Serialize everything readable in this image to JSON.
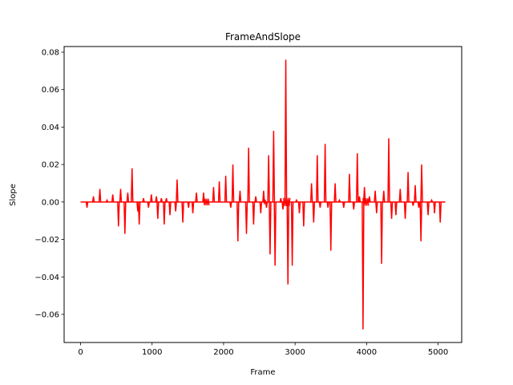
{
  "chart_data": {
    "type": "line",
    "title": "FrameAndSlope",
    "xlabel": "Frame",
    "ylabel": "Slope",
    "xlim": [
      -230,
      5330
    ],
    "ylim": [
      -0.075,
      0.083
    ],
    "xticks": [
      0,
      1000,
      2000,
      3000,
      4000,
      5000
    ],
    "xtick_labels": [
      "0",
      "1000",
      "2000",
      "3000",
      "4000",
      "5000"
    ],
    "yticks": [
      -0.06,
      -0.04,
      -0.02,
      0.0,
      0.02,
      0.04,
      0.06,
      0.08
    ],
    "ytick_labels": [
      "−0.06",
      "−0.04",
      "−0.02",
      "0.00",
      "0.02",
      "0.04",
      "0.06",
      "0.08"
    ],
    "grid": false,
    "legend": "none",
    "colors": {
      "line": "#ff0000",
      "axis": "#000000",
      "background": "#ffffff"
    },
    "series": [
      {
        "baseline": 0.0,
        "spikes": [
          {
            "x": 90,
            "y": -0.003
          },
          {
            "x": 180,
            "y": 0.003
          },
          {
            "x": 270,
            "y": 0.007
          },
          {
            "x": 370,
            "y": 0.001
          },
          {
            "x": 450,
            "y": 0.004
          },
          {
            "x": 530,
            "y": -0.013
          },
          {
            "x": 560,
            "y": 0.007
          },
          {
            "x": 620,
            "y": -0.017
          },
          {
            "x": 660,
            "y": 0.005
          },
          {
            "x": 720,
            "y": 0.018
          },
          {
            "x": 800,
            "y": -0.005
          },
          {
            "x": 820,
            "y": -0.012
          },
          {
            "x": 880,
            "y": 0.002
          },
          {
            "x": 950,
            "y": -0.003
          },
          {
            "x": 990,
            "y": 0.004
          },
          {
            "x": 1060,
            "y": 0.003
          },
          {
            "x": 1080,
            "y": -0.009
          },
          {
            "x": 1130,
            "y": 0.002
          },
          {
            "x": 1170,
            "y": -0.012
          },
          {
            "x": 1200,
            "y": 0.002
          },
          {
            "x": 1250,
            "y": -0.007
          },
          {
            "x": 1330,
            "y": -0.005
          },
          {
            "x": 1350,
            "y": 0.012
          },
          {
            "x": 1430,
            "y": -0.011
          },
          {
            "x": 1510,
            "y": -0.003
          },
          {
            "x": 1570,
            "y": -0.006
          },
          {
            "x": 1620,
            "y": 0.005
          },
          {
            "x": 1720,
            "y": 0.005
          },
          {
            "x": 1860,
            "y": 0.008
          },
          {
            "x": 1940,
            "y": 0.011
          },
          {
            "x": 2030,
            "y": 0.014
          },
          {
            "x": 2100,
            "y": -0.003
          },
          {
            "x": 2130,
            "y": 0.02
          },
          {
            "x": 2200,
            "y": -0.021
          },
          {
            "x": 2230,
            "y": 0.006
          },
          {
            "x": 2320,
            "y": -0.017
          },
          {
            "x": 2350,
            "y": 0.029
          },
          {
            "x": 2420,
            "y": -0.012
          },
          {
            "x": 2450,
            "y": 0.003
          },
          {
            "x": 2520,
            "y": -0.006
          },
          {
            "x": 2560,
            "y": 0.006
          },
          {
            "x": 2600,
            "y": -0.003
          },
          {
            "x": 2630,
            "y": 0.025
          },
          {
            "x": 2650,
            "y": -0.028
          },
          {
            "x": 2700,
            "y": 0.038
          },
          {
            "x": 2720,
            "y": -0.034
          },
          {
            "x": 2800,
            "y": 0.002
          },
          {
            "x": 2830,
            "y": -0.004
          },
          {
            "x": 2870,
            "y": 0.076
          },
          {
            "x": 2900,
            "y": -0.044
          },
          {
            "x": 2960,
            "y": -0.034
          },
          {
            "x": 3020,
            "y": 0.001
          },
          {
            "x": 3060,
            "y": -0.006
          },
          {
            "x": 3120,
            "y": -0.013
          },
          {
            "x": 3230,
            "y": 0.01
          },
          {
            "x": 3260,
            "y": -0.011
          },
          {
            "x": 3310,
            "y": 0.025
          },
          {
            "x": 3350,
            "y": -0.003
          },
          {
            "x": 3420,
            "y": 0.031
          },
          {
            "x": 3460,
            "y": -0.003
          },
          {
            "x": 3500,
            "y": -0.026
          },
          {
            "x": 3560,
            "y": 0.01
          },
          {
            "x": 3620,
            "y": 0.001
          },
          {
            "x": 3680,
            "y": -0.003
          },
          {
            "x": 3760,
            "y": 0.015
          },
          {
            "x": 3820,
            "y": -0.004
          },
          {
            "x": 3870,
            "y": 0.026
          },
          {
            "x": 3900,
            "y": 0.003
          },
          {
            "x": 3950,
            "y": -0.068
          },
          {
            "x": 3970,
            "y": 0.008
          },
          {
            "x": 4040,
            "y": 0.003
          },
          {
            "x": 4120,
            "y": 0.006
          },
          {
            "x": 4140,
            "y": -0.006
          },
          {
            "x": 4210,
            "y": -0.033
          },
          {
            "x": 4240,
            "y": 0.006
          },
          {
            "x": 4310,
            "y": 0.034
          },
          {
            "x": 4350,
            "y": -0.009
          },
          {
            "x": 4410,
            "y": -0.007
          },
          {
            "x": 4470,
            "y": 0.007
          },
          {
            "x": 4540,
            "y": -0.009
          },
          {
            "x": 4580,
            "y": 0.016
          },
          {
            "x": 4650,
            "y": -0.002
          },
          {
            "x": 4680,
            "y": 0.009
          },
          {
            "x": 4730,
            "y": -0.003
          },
          {
            "x": 4760,
            "y": -0.021
          },
          {
            "x": 4770,
            "y": 0.02
          },
          {
            "x": 4860,
            "y": -0.007
          },
          {
            "x": 4910,
            "y": 0.001
          },
          {
            "x": 4950,
            "y": -0.006
          },
          {
            "x": 5030,
            "y": -0.011
          }
        ],
        "oscillation_bands": [
          {
            "x_start": 1720,
            "x_end": 1800,
            "amplitude": 0.0018
          },
          {
            "x_start": 2560,
            "x_end": 2600,
            "amplitude": 0.0012
          },
          {
            "x_start": 2840,
            "x_end": 2940,
            "amplitude": 0.0022
          },
          {
            "x_start": 3950,
            "x_end": 4030,
            "amplitude": 0.002
          }
        ],
        "x_start": 0,
        "x_end": 5100
      }
    ]
  }
}
